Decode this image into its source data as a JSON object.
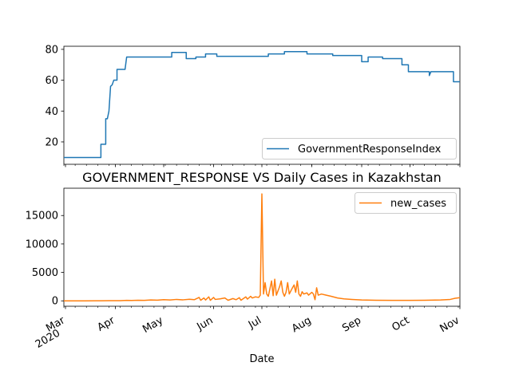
{
  "figure": {
    "title": "GOVERNMENT_RESPONSE VS Daily Cases in Kazakhstan",
    "xlabel": "Date"
  },
  "chart_data": [
    {
      "type": "line",
      "legend_loc": "lower right",
      "xlim": [
        "2020-02-29",
        "2020-11-01"
      ],
      "ylim": [
        5.5,
        82
      ],
      "yticks": [
        20,
        40,
        60,
        80
      ],
      "series": [
        {
          "name": "GovernmentResponseIndex",
          "color": "#1f77b4",
          "points": [
            [
              "2020-02-29",
              9.9
            ],
            [
              "2020-03-23",
              9.9
            ],
            [
              "2020-03-23",
              18.5
            ],
            [
              "2020-03-26",
              18.5
            ],
            [
              "2020-03-26",
              35.0
            ],
            [
              "2020-03-27",
              35.0
            ],
            [
              "2020-03-28",
              40.0
            ],
            [
              "2020-03-29",
              56.0
            ],
            [
              "2020-03-30",
              57.0
            ],
            [
              "2020-03-31",
              60.0
            ],
            [
              "2020-04-02",
              60.0
            ],
            [
              "2020-04-02",
              67.0
            ],
            [
              "2020-04-07",
              67.0
            ],
            [
              "2020-04-08",
              75.0
            ],
            [
              "2020-05-06",
              75.0
            ],
            [
              "2020-05-06",
              78.0
            ],
            [
              "2020-05-15",
              78.0
            ],
            [
              "2020-05-15",
              74.0
            ],
            [
              "2020-05-21",
              74.0
            ],
            [
              "2020-05-21",
              75.0
            ],
            [
              "2020-05-27",
              75.0
            ],
            [
              "2020-05-27",
              77.0
            ],
            [
              "2020-06-03",
              77.0
            ],
            [
              "2020-06-03",
              75.5
            ],
            [
              "2020-07-05",
              75.5
            ],
            [
              "2020-07-05",
              77.0
            ],
            [
              "2020-07-15",
              77.0
            ],
            [
              "2020-07-15",
              78.5
            ],
            [
              "2020-07-29",
              78.5
            ],
            [
              "2020-07-29",
              77.0
            ],
            [
              "2020-08-14",
              77.0
            ],
            [
              "2020-08-14",
              76.0
            ],
            [
              "2020-09-01",
              76.0
            ],
            [
              "2020-09-01",
              72.0
            ],
            [
              "2020-09-05",
              72.0
            ],
            [
              "2020-09-05",
              75.0
            ],
            [
              "2020-09-14",
              75.0
            ],
            [
              "2020-09-14",
              74.0
            ],
            [
              "2020-09-26",
              74.0
            ],
            [
              "2020-09-26",
              70.0
            ],
            [
              "2020-09-30",
              70.0
            ],
            [
              "2020-09-30",
              65.5
            ],
            [
              "2020-10-13",
              65.5
            ],
            [
              "2020-10-13",
              63.0
            ],
            [
              "2020-10-14",
              65.5
            ],
            [
              "2020-10-28",
              65.5
            ],
            [
              "2020-10-28",
              59.0
            ],
            [
              "2020-11-01",
              59.0
            ]
          ]
        }
      ]
    },
    {
      "type": "line",
      "legend_loc": "upper right",
      "xlim": [
        "2020-02-29",
        "2020-11-01"
      ],
      "ylim": [
        -950,
        19800
      ],
      "yticks": [
        0,
        5000,
        10000,
        15000
      ],
      "series": [
        {
          "name": "new_cases",
          "color": "#ff7f0e",
          "points": [
            [
              "2020-02-29",
              0
            ],
            [
              "2020-03-13",
              0
            ],
            [
              "2020-03-20",
              15
            ],
            [
              "2020-03-28",
              30
            ],
            [
              "2020-04-04",
              40
            ],
            [
              "2020-04-08",
              80
            ],
            [
              "2020-04-11",
              60
            ],
            [
              "2020-04-15",
              110
            ],
            [
              "2020-04-19",
              80
            ],
            [
              "2020-04-23",
              150
            ],
            [
              "2020-04-27",
              120
            ],
            [
              "2020-05-01",
              200
            ],
            [
              "2020-05-05",
              150
            ],
            [
              "2020-05-09",
              250
            ],
            [
              "2020-05-13",
              180
            ],
            [
              "2020-05-17",
              280
            ],
            [
              "2020-05-20",
              200
            ],
            [
              "2020-05-23",
              600
            ],
            [
              "2020-05-24",
              100
            ],
            [
              "2020-05-26",
              500
            ],
            [
              "2020-05-27",
              150
            ],
            [
              "2020-05-29",
              700
            ],
            [
              "2020-05-30",
              100
            ],
            [
              "2020-06-01",
              600
            ],
            [
              "2020-06-02",
              250
            ],
            [
              "2020-06-05",
              350
            ],
            [
              "2020-06-08",
              500
            ],
            [
              "2020-06-10",
              100
            ],
            [
              "2020-06-13",
              400
            ],
            [
              "2020-06-15",
              200
            ],
            [
              "2020-06-17",
              550
            ],
            [
              "2020-06-18",
              100
            ],
            [
              "2020-06-21",
              700
            ],
            [
              "2020-06-22",
              300
            ],
            [
              "2020-06-24",
              800
            ],
            [
              "2020-06-25",
              500
            ],
            [
              "2020-06-27",
              700
            ],
            [
              "2020-06-29",
              600
            ],
            [
              "2020-06-30",
              1000
            ],
            [
              "2020-07-01",
              18800
            ],
            [
              "2020-07-02",
              1200
            ],
            [
              "2020-07-03",
              3200
            ],
            [
              "2020-07-04",
              1200
            ],
            [
              "2020-07-05",
              800
            ],
            [
              "2020-07-07",
              3500
            ],
            [
              "2020-07-08",
              900
            ],
            [
              "2020-07-09",
              3800
            ],
            [
              "2020-07-10",
              1000
            ],
            [
              "2020-07-12",
              2500
            ],
            [
              "2020-07-13",
              3500
            ],
            [
              "2020-07-14",
              1500
            ],
            [
              "2020-07-15",
              800
            ],
            [
              "2020-07-16",
              1500
            ],
            [
              "2020-07-17",
              3200
            ],
            [
              "2020-07-18",
              1200
            ],
            [
              "2020-07-20",
              2300
            ],
            [
              "2020-07-21",
              2800
            ],
            [
              "2020-07-22",
              1500
            ],
            [
              "2020-07-23",
              3500
            ],
            [
              "2020-07-24",
              1200
            ],
            [
              "2020-07-25",
              800
            ],
            [
              "2020-07-26",
              1600
            ],
            [
              "2020-07-27",
              1200
            ],
            [
              "2020-07-29",
              1400
            ],
            [
              "2020-07-30",
              1000
            ],
            [
              "2020-08-01",
              1500
            ],
            [
              "2020-08-02",
              1200
            ],
            [
              "2020-08-03",
              200
            ],
            [
              "2020-08-04",
              2300
            ],
            [
              "2020-08-05",
              1000
            ],
            [
              "2020-08-07",
              1200
            ],
            [
              "2020-08-10",
              1000
            ],
            [
              "2020-08-13",
              800
            ],
            [
              "2020-08-17",
              500
            ],
            [
              "2020-08-21",
              350
            ],
            [
              "2020-08-26",
              250
            ],
            [
              "2020-09-01",
              150
            ],
            [
              "2020-09-10",
              100
            ],
            [
              "2020-09-20",
              80
            ],
            [
              "2020-10-01",
              80
            ],
            [
              "2020-10-10",
              100
            ],
            [
              "2020-10-20",
              150
            ],
            [
              "2020-10-26",
              250
            ],
            [
              "2020-10-29",
              450
            ],
            [
              "2020-11-01",
              550
            ]
          ]
        }
      ]
    }
  ],
  "xaxis": {
    "ticks": [
      {
        "date": "2020-03-01",
        "label": "Mar",
        "sublabel": "2020"
      },
      {
        "date": "2020-04-01",
        "label": "Apr"
      },
      {
        "date": "2020-05-01",
        "label": "May"
      },
      {
        "date": "2020-06-01",
        "label": "Jun"
      },
      {
        "date": "2020-07-01",
        "label": "Jul"
      },
      {
        "date": "2020-08-01",
        "label": "Aug"
      },
      {
        "date": "2020-09-01",
        "label": "Sep"
      },
      {
        "date": "2020-10-01",
        "label": "Oct"
      },
      {
        "date": "2020-11-01",
        "label": "Nov"
      }
    ]
  }
}
